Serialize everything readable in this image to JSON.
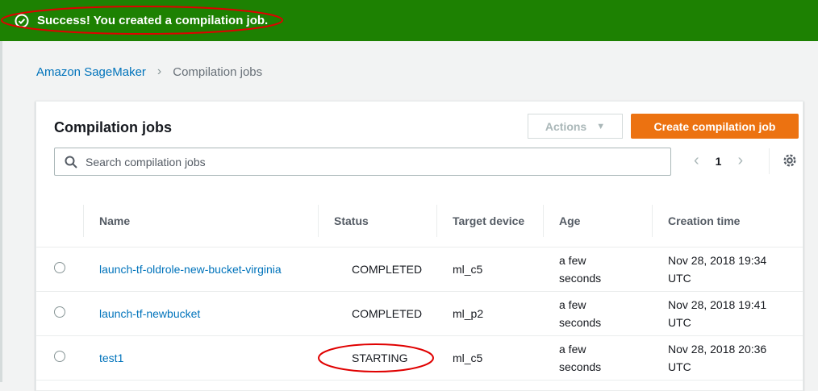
{
  "banner": {
    "message": "Success! You created a compilation job.",
    "icon": "check-circle-icon",
    "color": "#1d8102"
  },
  "breadcrumb": {
    "root": "Amazon SageMaker",
    "current": "Compilation jobs"
  },
  "panel": {
    "title": "Compilation jobs",
    "actions_label": "Actions",
    "create_label": "Create compilation job",
    "search_placeholder": "Search compilation jobs",
    "page": "1"
  },
  "table": {
    "headers": [
      "Name",
      "Status",
      "Target device",
      "Age",
      "Creation time"
    ],
    "rows": [
      {
        "name": "launch-tf-oldrole-new-bucket-virginia",
        "status": "COMPLETED",
        "target": "ml_c5",
        "age": "a few seconds",
        "created": "Nov 28, 2018 19:34 UTC"
      },
      {
        "name": "launch-tf-newbucket",
        "status": "COMPLETED",
        "target": "ml_p2",
        "age": "a few seconds",
        "created": "Nov 28, 2018 19:41 UTC"
      },
      {
        "name": "test1",
        "status": "STARTING",
        "target": "ml_c5",
        "age": "a few seconds",
        "created": "Nov 28, 2018 20:36 UTC"
      }
    ]
  },
  "colors": {
    "primary": "#ec7211",
    "link": "#0073bb",
    "annotation": "#e00000"
  }
}
